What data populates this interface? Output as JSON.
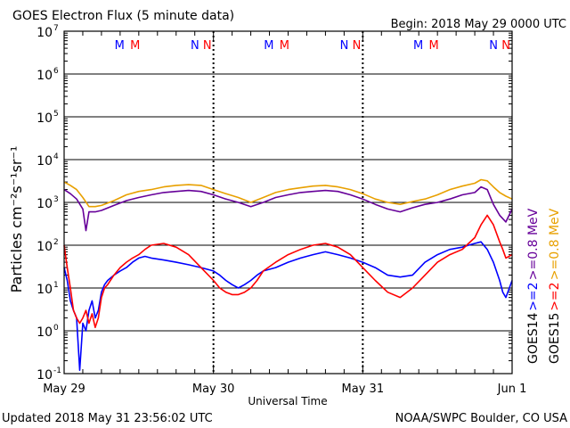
{
  "header": {
    "title": "GOES Electron Flux (5 minute data)",
    "begin": "Begin: 2018 May 29 0000 UTC"
  },
  "footer": {
    "updated": "Updated 2018 May 31 23:56:02 UTC",
    "credit": "NOAA/SWPC Boulder, CO USA"
  },
  "chart_data": {
    "type": "line",
    "title": "GOES Electron Flux (5 minute data)",
    "xlabel": "Universal Time",
    "ylabel": "Particles cm⁻²s⁻¹sr⁻¹",
    "y_scale": "log",
    "ylim": [
      0.1,
      10000000
    ],
    "xlim": [
      0,
      72
    ],
    "x_units": "hours since 2018 May 29 0000 UTC",
    "x_tick_labels": [
      {
        "x": 0,
        "label": "May 29"
      },
      {
        "x": 24,
        "label": "May 30"
      },
      {
        "x": 48,
        "label": "May 31"
      },
      {
        "x": 72,
        "label": "Jun 1"
      }
    ],
    "y_tick_labels": [
      {
        "exp": -1,
        "base": "10",
        "sup": "-1"
      },
      {
        "exp": 0,
        "base": "10",
        "sup": "0"
      },
      {
        "exp": 1,
        "base": "10",
        "sup": "1"
      },
      {
        "exp": 2,
        "base": "10",
        "sup": "2"
      },
      {
        "exp": 3,
        "base": "10",
        "sup": "3"
      },
      {
        "exp": 4,
        "base": "10",
        "sup": "4"
      },
      {
        "exp": 5,
        "base": "10",
        "sup": "5"
      },
      {
        "exp": 6,
        "base": "10",
        "sup": "6"
      },
      {
        "exp": 7,
        "base": "10",
        "sup": "7"
      }
    ],
    "threshold": {
      "value": 1000,
      "style": "dashed"
    },
    "markers": [
      {
        "x": 10,
        "label": "M",
        "color": "#0000ff"
      },
      {
        "x": 12.5,
        "label": "M",
        "color": "#ff0000"
      },
      {
        "x": 22,
        "label": "N",
        "color": "#0000ff"
      },
      {
        "x": 24,
        "label": "N",
        "color": "#ff0000"
      },
      {
        "x": 34,
        "label": "M",
        "color": "#0000ff"
      },
      {
        "x": 36.5,
        "label": "M",
        "color": "#ff0000"
      },
      {
        "x": 46,
        "label": "N",
        "color": "#0000ff"
      },
      {
        "x": 48,
        "label": "N",
        "color": "#ff0000"
      },
      {
        "x": 58,
        "label": "M",
        "color": "#0000ff"
      },
      {
        "x": 60.5,
        "label": "M",
        "color": "#ff0000"
      },
      {
        "x": 70,
        "label": "N",
        "color": "#0000ff"
      },
      {
        "x": 72,
        "label": "N",
        "color": "#ff0000"
      }
    ],
    "legend": {
      "placement": "right",
      "items": [
        {
          "text": "GOES14",
          "color": "#000000"
        },
        {
          "text": ">=2",
          "color": "#0000ff"
        },
        {
          "text": ">=0.8 MeV",
          "color": "#660099"
        },
        {
          "text": "GOES15",
          "color": "#000000"
        },
        {
          "text": ">=2",
          "color": "#ff0000"
        },
        {
          "text": ">=0.8 MeV",
          "color": "#e8a000"
        }
      ]
    },
    "series": [
      {
        "color": "#e8a000",
        "x": [
          0,
          1,
          2,
          3,
          4,
          5,
          6,
          8,
          10,
          12,
          14,
          16,
          18,
          20,
          22,
          24,
          26,
          28,
          30,
          32,
          34,
          36,
          38,
          40,
          42,
          44,
          46,
          48,
          50,
          52,
          54,
          56,
          58,
          60,
          62,
          64,
          66,
          67,
          68,
          69,
          70,
          71,
          72
        ],
        "y": [
          3000,
          2500,
          2000,
          1300,
          800,
          800,
          850,
          1100,
          1500,
          1800,
          2000,
          2300,
          2500,
          2600,
          2500,
          2000,
          1600,
          1300,
          1000,
          1300,
          1700,
          2000,
          2200,
          2400,
          2500,
          2300,
          2000,
          1600,
          1200,
          1000,
          900,
          1050,
          1200,
          1500,
          2000,
          2400,
          2800,
          3400,
          3200,
          2300,
          1700,
          1400,
          1200
        ]
      },
      {
        "color": "#660099",
        "x": [
          0,
          1,
          2,
          3,
          3.5,
          4,
          5,
          6,
          8,
          10,
          12,
          14,
          16,
          18,
          20,
          22,
          24,
          26,
          28,
          30,
          32,
          34,
          36,
          38,
          40,
          42,
          44,
          46,
          48,
          50,
          52,
          54,
          56,
          58,
          60,
          62,
          64,
          66,
          67,
          68,
          69,
          70,
          71,
          72
        ],
        "y": [
          2000,
          1600,
          1200,
          700,
          220,
          600,
          600,
          650,
          850,
          1100,
          1300,
          1500,
          1700,
          1800,
          1900,
          1800,
          1500,
          1200,
          1000,
          800,
          1000,
          1300,
          1500,
          1700,
          1800,
          1900,
          1800,
          1500,
          1200,
          900,
          700,
          600,
          750,
          900,
          1000,
          1200,
          1500,
          1700,
          2300,
          2000,
          900,
          500,
          350,
          700
        ]
      },
      {
        "color": "#0000ff",
        "x": [
          0,
          0.5,
          1,
          1.5,
          2,
          2.5,
          3,
          3.5,
          4,
          4.5,
          5,
          5.5,
          6,
          6.5,
          7,
          8,
          9,
          10,
          11,
          12,
          13,
          14,
          16,
          18,
          20,
          22,
          24,
          25,
          26,
          27,
          28,
          29,
          30,
          31,
          32,
          34,
          36,
          38,
          40,
          42,
          44,
          46,
          48,
          50,
          52,
          54,
          56,
          58,
          60,
          62,
          64,
          65,
          66,
          67,
          68,
          69,
          70,
          70.5,
          71,
          72
        ],
        "y": [
          30,
          15,
          5,
          3,
          2,
          0.12,
          1.5,
          1,
          3,
          5,
          2,
          3,
          8,
          12,
          15,
          20,
          25,
          30,
          40,
          50,
          55,
          50,
          45,
          40,
          35,
          30,
          25,
          20,
          15,
          12,
          10,
          12,
          15,
          20,
          25,
          30,
          40,
          50,
          60,
          70,
          60,
          50,
          40,
          30,
          20,
          18,
          20,
          40,
          60,
          80,
          90,
          100,
          110,
          120,
          80,
          40,
          15,
          8,
          6,
          15
        ]
      },
      {
        "color": "#ff0000",
        "x": [
          0,
          0.5,
          1,
          1.5,
          2,
          2.5,
          3,
          3.5,
          4,
          4.5,
          5,
          5.5,
          6,
          6.5,
          7,
          8,
          9,
          10,
          11,
          12,
          13,
          14,
          16,
          18,
          20,
          22,
          24,
          25,
          26,
          27,
          28,
          29,
          30,
          31,
          32,
          34,
          36,
          38,
          40,
          42,
          44,
          46,
          48,
          50,
          52,
          54,
          56,
          58,
          60,
          62,
          64,
          65,
          66,
          67,
          68,
          69,
          70,
          70.5,
          71,
          72
        ],
        "y": [
          100,
          30,
          10,
          3,
          2,
          1.5,
          2,
          3,
          1.5,
          2.5,
          1.2,
          2,
          6,
          10,
          12,
          20,
          30,
          40,
          50,
          60,
          80,
          100,
          110,
          90,
          60,
          30,
          15,
          10,
          8,
          7,
          7,
          8,
          10,
          15,
          25,
          40,
          60,
          80,
          100,
          110,
          90,
          60,
          30,
          15,
          8,
          6,
          10,
          20,
          40,
          60,
          80,
          110,
          150,
          300,
          500,
          300,
          120,
          80,
          50,
          60
        ]
      }
    ]
  }
}
